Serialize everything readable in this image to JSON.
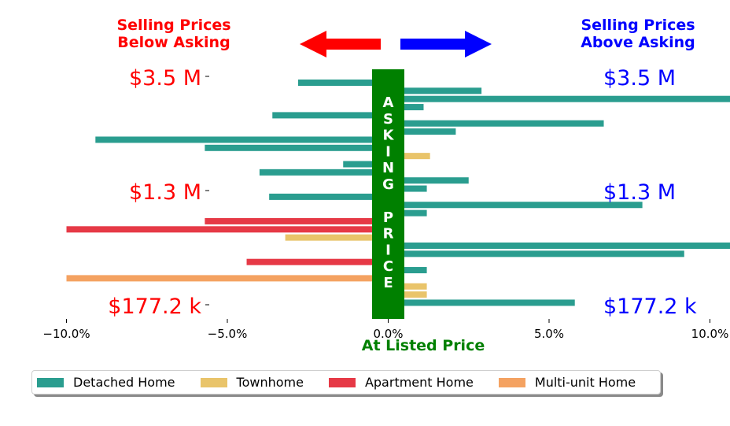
{
  "chart_data": {
    "type": "bar",
    "orientation": "horizontal",
    "xlabel": "At Listed Price",
    "x_ticks": [
      "−10.0%",
      "−5.0%",
      "0.0%",
      "5.0%",
      "10.0%"
    ],
    "x_tick_values": [
      -10,
      -5,
      0,
      5,
      10
    ],
    "xlim": [
      -11,
      12
    ],
    "y_tick_labels": [
      "$3.5 M",
      "$1.3 M",
      "$177.2 k"
    ],
    "header_left": "Selling Prices\nBelow Asking",
    "header_right": "Selling Prices\nAbove Asking",
    "center_band_text": "ASKING PRICE",
    "legend_placement": "bottom",
    "grid": false,
    "series": [
      {
        "name": "Detached Home",
        "color": "#2a9d8f"
      },
      {
        "name": "Townhome",
        "color": "#e9c46a"
      },
      {
        "name": "Apartment Home",
        "color": "#e63946"
      },
      {
        "name": "Multi-unit Home",
        "color": "#f4a261"
      }
    ],
    "bars": [
      {
        "series": 0,
        "value": -2.8
      },
      {
        "series": 0,
        "value": 2.9
      },
      {
        "series": 0,
        "value": 11.7
      },
      {
        "series": 0,
        "value": 1.1
      },
      {
        "series": 0,
        "value": -3.6
      },
      {
        "series": 0,
        "value": 6.7
      },
      {
        "series": 0,
        "value": 2.1
      },
      {
        "series": 0,
        "value": -9.1
      },
      {
        "series": 0,
        "value": -5.7
      },
      {
        "series": 1,
        "value": 1.3
      },
      {
        "series": 0,
        "value": -1.4
      },
      {
        "series": 0,
        "value": -4.0
      },
      {
        "series": 0,
        "value": 2.5
      },
      {
        "series": 0,
        "value": 1.2
      },
      {
        "series": 0,
        "value": -3.7
      },
      {
        "series": 0,
        "value": 7.9
      },
      {
        "series": 0,
        "value": 1.2
      },
      {
        "series": 2,
        "value": -5.7
      },
      {
        "series": 2,
        "value": -10.0
      },
      {
        "series": 1,
        "value": -3.2
      },
      {
        "series": 0,
        "value": 12.0
      },
      {
        "series": 0,
        "value": 9.2
      },
      {
        "series": 2,
        "value": -4.4
      },
      {
        "series": 0,
        "value": 1.2
      },
      {
        "series": 3,
        "value": -10.0
      },
      {
        "series": 1,
        "value": 1.2
      },
      {
        "series": 1,
        "value": 1.2
      },
      {
        "series": 0,
        "value": 5.8
      }
    ]
  },
  "colors": {
    "below": "#ff0000",
    "above": "#0000ff",
    "band": "#008000",
    "band_text": "#ffffff"
  }
}
